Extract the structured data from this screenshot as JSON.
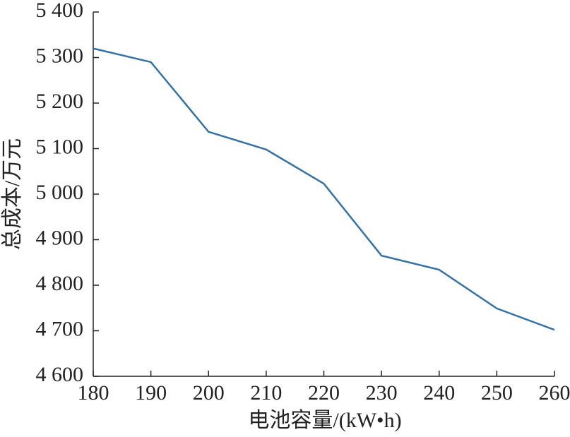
{
  "chart_data": {
    "type": "line",
    "x_label": "电池容量/(kW•h)",
    "y_label": "总成本/万元",
    "x": [
      180,
      190,
      200,
      210,
      220,
      230,
      240,
      250,
      260
    ],
    "series": [
      {
        "color": "#3572a5",
        "values": [
          5320,
          5290,
          5137,
          5098,
          5023,
          4865,
          4834,
          4749,
          4702
        ]
      }
    ],
    "xlim": [
      180,
      260
    ],
    "xticks": [
      180,
      190,
      200,
      210,
      220,
      230,
      240,
      250,
      260
    ],
    "ylim": [
      4600,
      5400
    ],
    "yticks": [
      {
        "value": 4600,
        "label": "4 600"
      },
      {
        "value": 4700,
        "label": "4 700"
      },
      {
        "value": 4800,
        "label": "4 800"
      },
      {
        "value": 4900,
        "label": "4 900"
      },
      {
        "value": 5000,
        "label": "5 000"
      },
      {
        "value": 5100,
        "label": "5 100"
      },
      {
        "value": 5200,
        "label": "5 200"
      },
      {
        "value": 5300,
        "label": "5 300"
      },
      {
        "value": 5400,
        "label": "5 400"
      }
    ]
  }
}
